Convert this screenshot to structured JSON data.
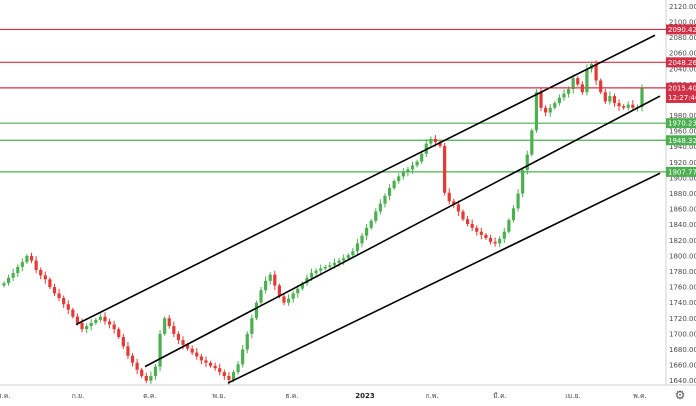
{
  "chart_data": {
    "type": "candlestick",
    "y_axis": {
      "side": "right",
      "ylim": [
        1631,
        2123
      ],
      "ticks": [
        "2120.000",
        "2100.000",
        "2080.000",
        "2060.000",
        "2040.000",
        "2020.000",
        "2000.000",
        "1980.000",
        "1960.000",
        "1940.000",
        "1920.000",
        "1900.000",
        "1880.000",
        "1860.000",
        "1840.000",
        "1820.000",
        "1800.000",
        "1780.000",
        "1760.000",
        "1740.000",
        "1720.000",
        "1700.000",
        "1680.000",
        "1660.000",
        "1640.000"
      ]
    },
    "x_axis": {
      "ticks": [
        {
          "label": "ส.ค.",
          "bold": false
        },
        {
          "label": "ก.ย.",
          "bold": false
        },
        {
          "label": "ต.ค.",
          "bold": false
        },
        {
          "label": "พ.ย.",
          "bold": false
        },
        {
          "label": "ธ.ค.",
          "bold": false
        },
        {
          "label": "2023",
          "bold": true
        },
        {
          "label": "ก.พ.",
          "bold": false
        },
        {
          "label": "มี.ค.",
          "bold": false
        },
        {
          "label": "เม.ย.",
          "bold": false
        },
        {
          "label": "พ.ค.",
          "bold": false
        }
      ]
    },
    "price_bars": [
      1765,
      1772,
      1778,
      1786,
      1792,
      1800,
      1794,
      1782,
      1775,
      1770,
      1760,
      1752,
      1746,
      1738,
      1731,
      1722,
      1714,
      1706,
      1710,
      1714,
      1718,
      1722,
      1716,
      1712,
      1706,
      1696,
      1684,
      1672,
      1663,
      1654,
      1646,
      1640,
      1646,
      1658,
      1700,
      1720,
      1710,
      1700,
      1692,
      1686,
      1681,
      1676,
      1671,
      1666,
      1663,
      1659,
      1656,
      1651,
      1646,
      1641,
      1651,
      1661,
      1680,
      1700,
      1720,
      1740,
      1756,
      1768,
      1776,
      1762,
      1748,
      1740,
      1745,
      1752,
      1758,
      1765,
      1772,
      1778,
      1781,
      1784,
      1786,
      1788,
      1791,
      1794,
      1797,
      1801,
      1806,
      1816,
      1826,
      1836,
      1845,
      1857,
      1867,
      1877,
      1887,
      1896,
      1902,
      1907,
      1911,
      1916,
      1921,
      1931,
      1944,
      1950,
      1946,
      1941,
      1881,
      1870,
      1866,
      1857,
      1847,
      1841,
      1836,
      1831,
      1827,
      1823,
      1818,
      1816,
      1822,
      1831,
      1846,
      1861,
      1880,
      1910,
      1930,
      1961,
      2010,
      1990,
      1984,
      1990,
      1996,
      2003,
      2008,
      2014,
      2028,
      2020,
      2010,
      2040,
      2046,
      2025,
      2010,
      1998,
      2005,
      1996,
      1992,
      1990,
      1994,
      1990,
      1991,
      2015
    ],
    "horizontal_levels": [
      {
        "value": 2090.428,
        "label": "2090.428",
        "color": "#d32f45"
      },
      {
        "value": 2048.267,
        "label": "2048.267",
        "color": "#d32f45"
      },
      {
        "value": 2015.544,
        "label": "2015.544",
        "color": "#d32f45"
      },
      {
        "value": 1970.237,
        "label": "1970.237",
        "color": "#4caf50"
      },
      {
        "value": 1948.324,
        "label": "1948.324",
        "color": "#4caf50"
      },
      {
        "value": 1907.772,
        "label": "1907.772",
        "color": "#4caf50"
      }
    ],
    "current_price": {
      "value": "2015.405",
      "time": "12:27:46",
      "color": "#d32f45"
    },
    "trend_lines": [
      {
        "from": [
          76,
          1712
        ],
        "to": [
          655,
          2083
        ]
      },
      {
        "from": [
          145,
          1658
        ],
        "to": [
          660,
          2005
        ]
      },
      {
        "from": [
          228,
          1637
        ],
        "to": [
          660,
          1906
        ]
      }
    ],
    "colors": {
      "bull": "#4caf50",
      "bear": "#e53935",
      "trend": "#000000"
    }
  },
  "icons": {
    "settings": "gear-icon"
  }
}
